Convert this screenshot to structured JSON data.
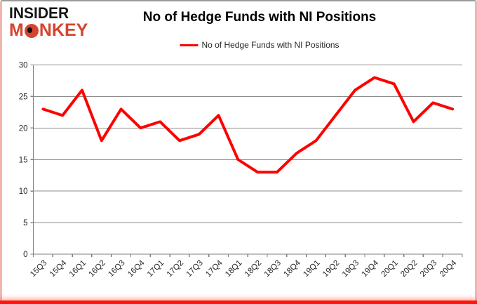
{
  "logo": {
    "line1": "INSIDER",
    "line2": "MONKEY",
    "text_color": "#161616",
    "accent_color": "#d4452f"
  },
  "header": {
    "title": "No of Hedge Funds with NI Positions"
  },
  "legend": {
    "label": "No of Hedge Funds with NI Positions",
    "line_color": "#ff0000"
  },
  "chart_data": {
    "type": "line",
    "title": "No of Hedge Funds with NI Positions",
    "categories": [
      "15Q3",
      "15Q4",
      "16Q1",
      "16Q2",
      "16Q3",
      "16Q4",
      "17Q1",
      "17Q2",
      "17Q3",
      "17Q4",
      "18Q1",
      "18Q2",
      "18Q3",
      "18Q4",
      "19Q1",
      "19Q2",
      "19Q3",
      "19Q4",
      "20Q1",
      "20Q2",
      "20Q3",
      "20Q4"
    ],
    "series": [
      {
        "name": "No of Hedge Funds with NI Positions",
        "color": "#ff0000",
        "values": [
          23,
          22,
          26,
          18,
          23,
          20,
          21,
          18,
          19,
          22,
          15,
          13,
          13,
          16,
          18,
          22,
          26,
          28,
          27,
          21,
          24,
          23
        ]
      }
    ],
    "xlabel": "",
    "ylabel": "",
    "ylim": [
      0,
      30
    ],
    "yticks": [
      0,
      5,
      10,
      15,
      20,
      25,
      30
    ],
    "grid": true,
    "legend_position": "top",
    "gridline_color": "#8c8c8c",
    "axis_color": "#7f7f7f",
    "tick_label_color": "#262626"
  }
}
